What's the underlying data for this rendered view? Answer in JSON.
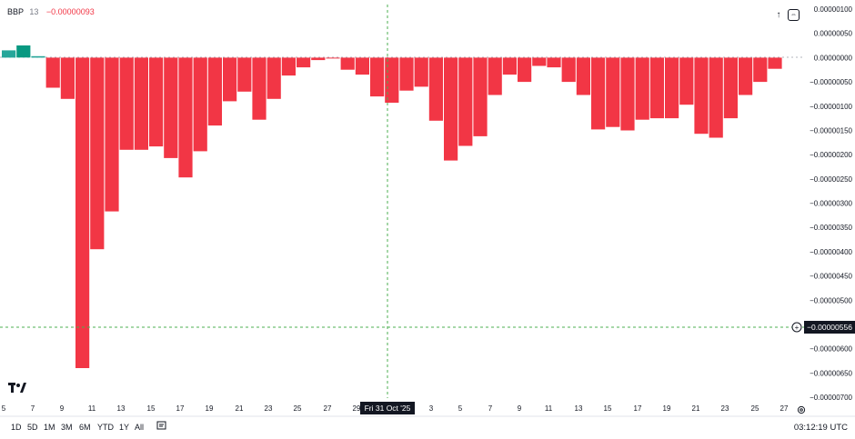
{
  "legend": {
    "name": "BBP",
    "period": "13",
    "value": "−0.00000093"
  },
  "price_tags": {
    "crosshair_value": "−0.00000556",
    "crosshair_date": "Fri 31 Oct '25"
  },
  "ranges": [
    "1D",
    "5D",
    "1M",
    "3M",
    "6M",
    "YTD",
    "1Y",
    "All"
  ],
  "clock": "03:12:19 UTC",
  "colors": {
    "positive": "#26a69a",
    "positive_dark": "#089981",
    "negative": "#f23645",
    "grid": "#e0e3eb",
    "crosshair": "#4caf50"
  },
  "chart_data": {
    "type": "bar",
    "title": "",
    "ylim": [
      -7e-06,
      1e-06
    ],
    "y_ticks": [
      "0.00000100",
      "0.00000050",
      "0.00000000",
      "−0.00000050",
      "−0.00000100",
      "−0.00000150",
      "−0.00000200",
      "−0.00000250",
      "−0.00000300",
      "−0.00000350",
      "−0.00000400",
      "−0.00000450",
      "−0.00000500",
      "−0.00000550",
      "−0.00000600",
      "−0.00000650",
      "−0.00000700"
    ],
    "x_ticks": [
      "5",
      "7",
      "9",
      "11",
      "13",
      "15",
      "17",
      "19",
      "21",
      "23",
      "25",
      "27",
      "29",
      "Oct",
      "3",
      "5",
      "7",
      "9",
      "11",
      "13",
      "15",
      "17",
      "19",
      "21",
      "23",
      "25",
      "27"
    ],
    "series": [
      {
        "values": [
          1.5e-07,
          2.5e-07,
          3e-08,
          -6.2e-07,
          -8.5e-07,
          -6.4e-06,
          -3.95e-06,
          -3.17e-06,
          -1.9e-06,
          -1.9e-06,
          -1.83e-06,
          -2.07e-06,
          -2.47e-06,
          -1.93e-06,
          -1.4e-06,
          -9e-07,
          -7e-07,
          -1.28e-06,
          -8.5e-07,
          -3.7e-07,
          -2e-07,
          -5e-08,
          -1e-08,
          -2.5e-07,
          -3.5e-07,
          -8e-07,
          -9.3e-07,
          -6.8e-07,
          -6e-07,
          -1.3e-06,
          -2.12e-06,
          -1.82e-06,
          -1.62e-06,
          -7.7e-07,
          -3.5e-07,
          -5e-07,
          -1.7e-07,
          -2e-07,
          -5e-07,
          -7.7e-07,
          -1.48e-06,
          -1.43e-06,
          -1.5e-06,
          -1.28e-06,
          -1.25e-06,
          -1.25e-06,
          -9.7e-07,
          -1.57e-06,
          -1.65e-06,
          -1.25e-06,
          -7.7e-07,
          -5e-07,
          -2.3e-07
        ]
      }
    ]
  }
}
